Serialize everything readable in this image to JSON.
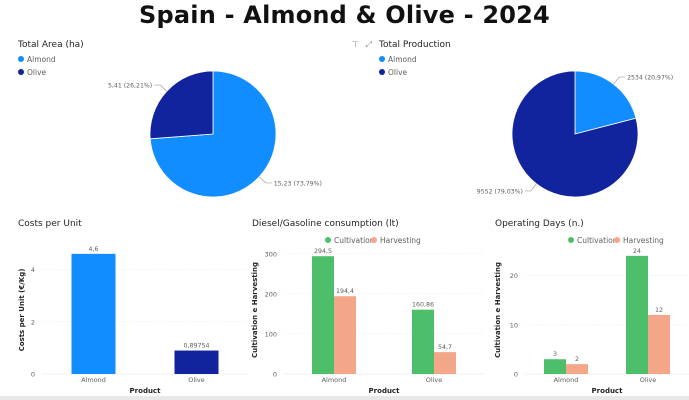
{
  "title": "Spain - Almond & Olive - 2024",
  "colors": {
    "almond": "#118dff",
    "olive": "#12239e",
    "cultivation": "#4dbf6a",
    "harvesting": "#f4a688",
    "axis": "#605e5c",
    "grid": "#e6e6e6"
  },
  "header_icons": [
    "filter-icon",
    "expand-icon"
  ],
  "chart_data": [
    {
      "type": "pie",
      "title": "Total Area (ha)",
      "legend": [
        "Almond",
        "Olive"
      ],
      "slices": [
        {
          "name": "Almond",
          "value": 15.23,
          "label": "15,23 (73,79%)"
        },
        {
          "name": "Olive",
          "value": 5.41,
          "label": "5,41 (26,21%)"
        }
      ]
    },
    {
      "type": "pie",
      "title": "Total Production",
      "legend": [
        "Almond",
        "Olive"
      ],
      "slices": [
        {
          "name": "Almond",
          "value": 2534,
          "label": "2534 (20,97%)"
        },
        {
          "name": "Olive",
          "value": 9552,
          "label": "9552 (79,03%)"
        }
      ]
    },
    {
      "type": "bar",
      "title": "Costs per Unit",
      "xlabel": "Product",
      "ylabel": "Costs per Unit (€/Kg)",
      "categories": [
        "Almond",
        "Olive"
      ],
      "values": [
        4.6,
        0.89754
      ],
      "value_labels": [
        "4,6",
        "0,89754"
      ],
      "ylim": [
        0,
        4.9
      ],
      "yticks": [
        0,
        2,
        4
      ]
    },
    {
      "type": "bar",
      "title": "Diesel/Gasoline consumption (lt)",
      "xlabel": "Product",
      "ylabel": "Cultivation e Harvesting",
      "categories": [
        "Almond",
        "Olive"
      ],
      "legend": [
        "Cultivation",
        "Harvesting"
      ],
      "series": [
        {
          "name": "Cultivation",
          "values": [
            294.5,
            160.86
          ],
          "labels": [
            "294,5",
            "160,86"
          ]
        },
        {
          "name": "Harvesting",
          "values": [
            194.4,
            54.7
          ],
          "labels": [
            "194,4",
            "54,7"
          ]
        }
      ],
      "ylim": [
        0,
        320
      ],
      "yticks": [
        0,
        100,
        200,
        300
      ]
    },
    {
      "type": "bar",
      "title": "Operating Days (n.)",
      "xlabel": "Product",
      "ylabel": "Cultivation e Harvesting",
      "categories": [
        "Almond",
        "Olive"
      ],
      "legend": [
        "Cultivation",
        "Harvesting"
      ],
      "series": [
        {
          "name": "Cultivation",
          "values": [
            3,
            24
          ],
          "labels": [
            "3",
            "24"
          ]
        },
        {
          "name": "Harvesting",
          "values": [
            2,
            12
          ],
          "labels": [
            "2",
            "12"
          ]
        }
      ],
      "ylim": [
        0,
        26
      ],
      "yticks": [
        0,
        10,
        20
      ]
    }
  ]
}
